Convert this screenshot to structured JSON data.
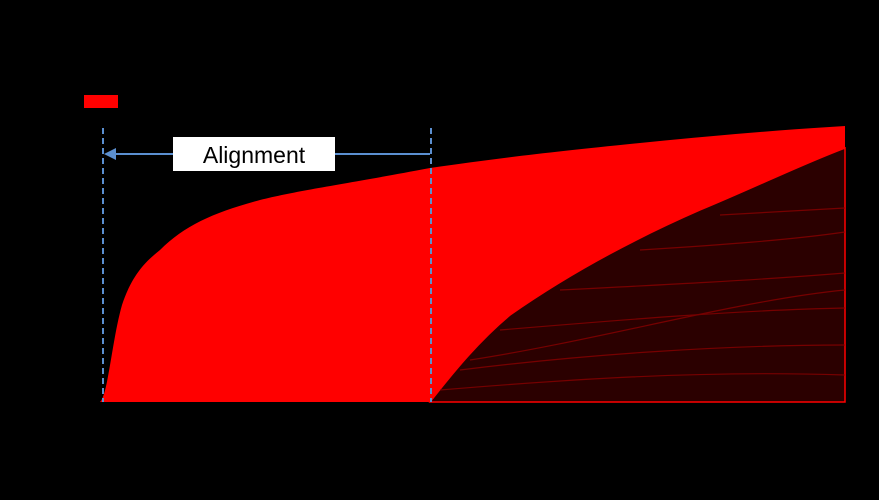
{
  "label": "Alignment"
}
